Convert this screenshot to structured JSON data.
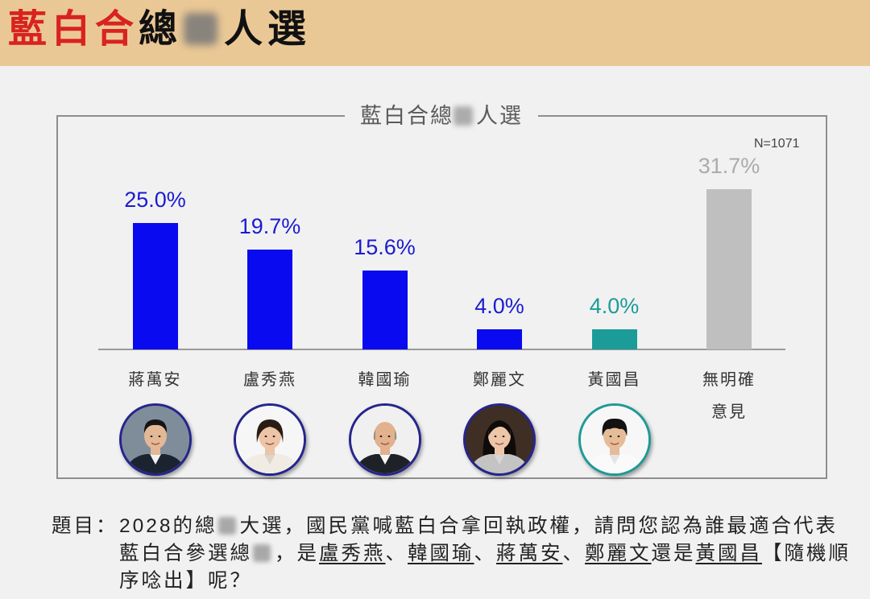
{
  "header": {
    "title_red": "藍白合",
    "title_mid": "總",
    "title_end": "人選",
    "background": "#EAC896",
    "accent": "#D8231F"
  },
  "chart_data": {
    "type": "bar",
    "title_start": "藍白合總",
    "title_end": "人選",
    "sample_note": "N=1071",
    "categories": [
      "蔣萬安",
      "盧秀燕",
      "韓國瑜",
      "鄭麗文",
      "黃國昌",
      "無明確\n意見"
    ],
    "values": [
      25.0,
      19.7,
      15.6,
      4.0,
      4.0,
      31.7
    ],
    "value_labels": [
      "25.0%",
      "19.7%",
      "15.6%",
      "4.0%",
      "4.0%",
      "31.7%"
    ],
    "bar_colors": [
      "#0A0AF0",
      "#0A0AF0",
      "#0A0AF0",
      "#0A0AF0",
      "#1C9C98",
      "#BFBFBF"
    ],
    "label_colors": [
      "#1B1BD0",
      "#1B1BD0",
      "#1B1BD0",
      "#1B1BD0",
      "#1C9C98",
      "#ABABAB"
    ],
    "grid": false
  },
  "question": {
    "label": "題目：",
    "line1_a": "2028的總",
    "line1_b": "大選，國民黨喊藍白合拿回執政權，請問您認為誰最適合代表",
    "line2_a": "藍白合參選總",
    "line2_b": "，是",
    "names": [
      "盧秀燕",
      "韓國瑜",
      "蔣萬安",
      "鄭麗文",
      "黃國昌"
    ],
    "separator": "、",
    "conjunction": "還是",
    "line2_end": "【隨機順",
    "line3": "序唸出】呢？"
  }
}
